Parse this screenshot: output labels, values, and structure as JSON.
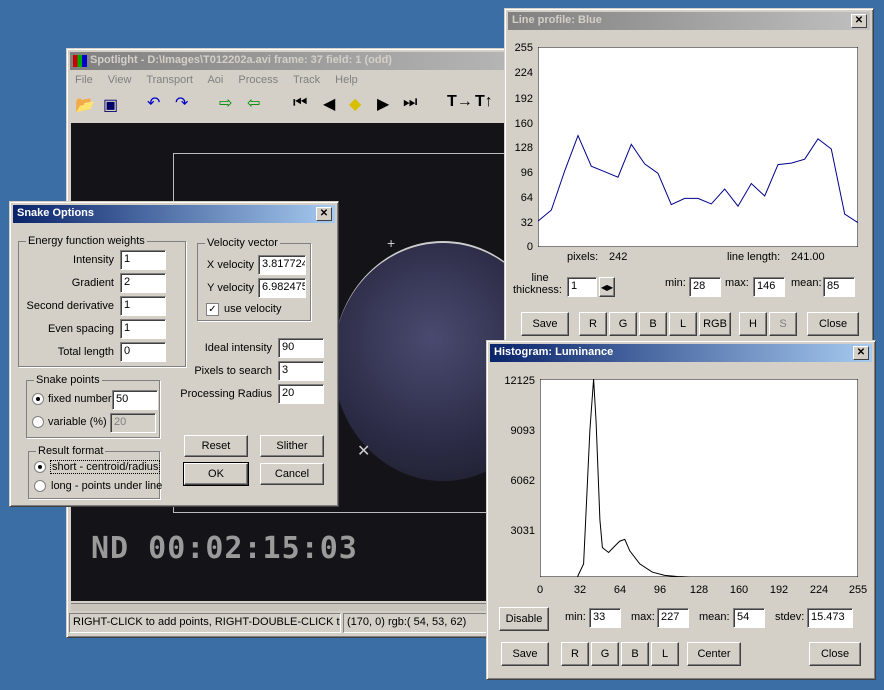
{
  "spotlight": {
    "title": "Spotlight - D:\\Images\\T012202a.avi    frame: 37  field:  1 (odd)",
    "menu": [
      "File",
      "View",
      "Transport",
      "Aoi",
      "Process",
      "Track",
      "Help"
    ],
    "timecode": "ND 00:02:15:03",
    "status_left": "RIGHT-CLICK to add points, RIGHT-DOUBLE-CLICK to cl",
    "status_right": "(170,   0) rgb:( 54, 53, 62)"
  },
  "snake": {
    "title": "Snake Options",
    "energy_group": "Energy function weights",
    "energy": [
      {
        "label": "Intensity",
        "value": "1"
      },
      {
        "label": "Gradient",
        "value": "2"
      },
      {
        "label": "Second derivative",
        "value": "1"
      },
      {
        "label": "Even spacing",
        "value": "1"
      },
      {
        "label": "Total length",
        "value": "0"
      }
    ],
    "velocity_group": "Velocity vector",
    "x_velocity_label": "X velocity",
    "x_velocity": "3.817724",
    "y_velocity_label": "Y velocity",
    "y_velocity": "6.982475",
    "use_velocity": "use velocity",
    "ideal_label": "Ideal intensity",
    "ideal": "90",
    "pixels_label": "Pixels to search",
    "pixels": "3",
    "radius_label": "Processing Radius",
    "radius": "20",
    "points_group": "Snake points",
    "fixed_label": "fixed number",
    "fixed": "50",
    "variable_label": "variable (%)",
    "variable": "20",
    "result_group": "Result format",
    "short_label": "short - centroid/radius",
    "long_label": "long - points under line",
    "reset": "Reset",
    "slither": "Slither",
    "ok": "OK",
    "cancel": "Cancel"
  },
  "profile": {
    "title": "Line profile: Blue",
    "yticks": [
      "255",
      "224",
      "192",
      "160",
      "128",
      "96",
      "64",
      "32",
      "0"
    ],
    "pixels_label": "pixels:",
    "pixels": "242",
    "length_label": "line length:",
    "length": "241.00",
    "thickness_label1": "line",
    "thickness_label2": "thickness:",
    "thickness": "1",
    "min_label": "min:",
    "min": "28",
    "max_label": "max:",
    "max": "146",
    "mean_label": "mean:",
    "mean": "85",
    "buttons": [
      "Save",
      "R",
      "G",
      "B",
      "L",
      "RGB",
      "H",
      "S",
      "Close"
    ]
  },
  "histogram": {
    "title": "Histogram: Luminance",
    "yticks": [
      "12125",
      "9093",
      "6062",
      "3031"
    ],
    "xticks": [
      "0",
      "32",
      "64",
      "96",
      "128",
      "160",
      "192",
      "224",
      "255"
    ],
    "disable": "Disable",
    "min_label": "min:",
    "min": "33",
    "max_label": "max:",
    "max": "227",
    "mean_label": "mean:",
    "mean": "54",
    "stdev_label": "stdev:",
    "stdev": "15.473",
    "buttons": [
      "Save",
      "R",
      "G",
      "B",
      "L",
      "Center",
      "Close"
    ]
  },
  "chart_data": [
    {
      "type": "line",
      "title": "Line profile: Blue",
      "ylim": [
        0,
        255
      ],
      "x": [
        0,
        10,
        20,
        30,
        40,
        50,
        60,
        70,
        80,
        90,
        100,
        110,
        120,
        130,
        140,
        150,
        160,
        170,
        180,
        190,
        200,
        210,
        220,
        230,
        240
      ],
      "values": [
        33,
        47,
        97,
        142,
        103,
        96,
        89,
        131,
        106,
        94,
        54,
        62,
        62,
        55,
        74,
        52,
        81,
        65,
        105,
        107,
        112,
        138,
        125,
        42,
        31
      ]
    },
    {
      "type": "line",
      "title": "Histogram: Luminance",
      "xlim": [
        0,
        255
      ],
      "ylim": [
        0,
        12125
      ],
      "x": [
        0,
        30,
        35,
        40,
        43,
        45,
        48,
        50,
        55,
        60,
        64,
        68,
        72,
        80,
        90,
        100,
        110,
        120,
        255
      ],
      "values": [
        0,
        0,
        800,
        9000,
        12125,
        9500,
        3500,
        1800,
        1500,
        1900,
        2200,
        2300,
        1600,
        800,
        300,
        100,
        30,
        0,
        0
      ]
    }
  ]
}
